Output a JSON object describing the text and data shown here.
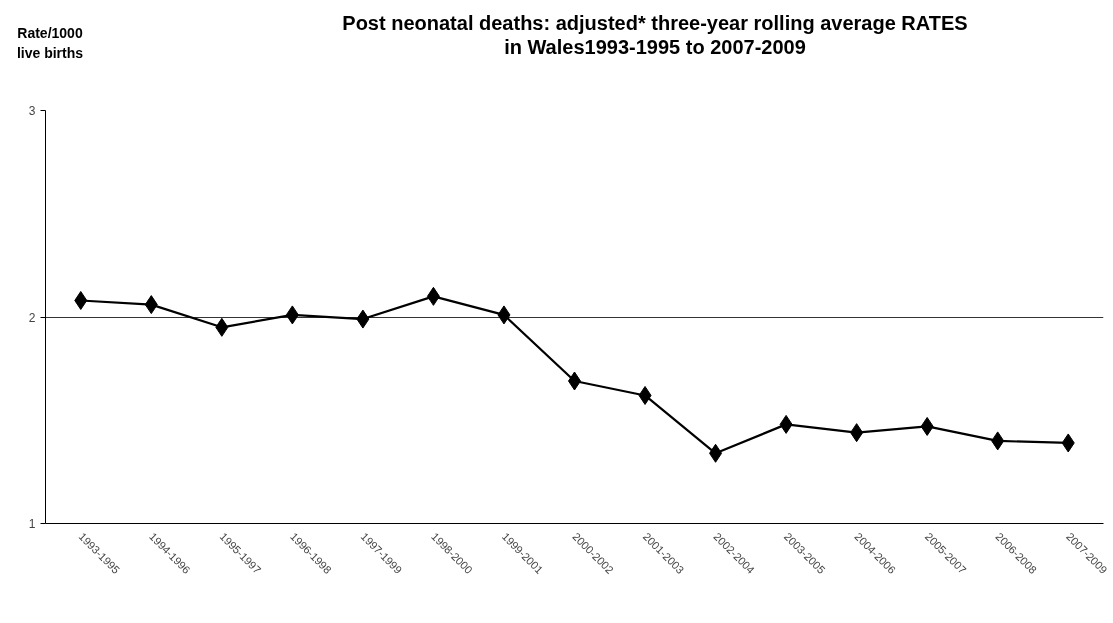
{
  "chart_data": {
    "type": "line",
    "title": "Post neonatal deaths: adjusted* three-year rolling average RATES\nin Wales1993-1995 to 2007-2009",
    "ylabel": "Rate/1000\nlive births",
    "categories": [
      "1993-1995",
      "1994-1996",
      "1995-1997",
      "1996-1998",
      "1997-1999",
      "1998-2000",
      "1999-2001",
      "2000-2002",
      "2001-2003",
      "2002-2004",
      "2003-2005",
      "2004-2006",
      "2005-2007",
      "2006-2008",
      "2007-2009"
    ],
    "series": [
      {
        "color": "#000000",
        "values": [
          2.08,
          2.06,
          1.95,
          2.01,
          1.99,
          2.1,
          2.01,
          1.69,
          1.62,
          1.34,
          1.48,
          1.44,
          1.47,
          1.4,
          1.39
        ]
      }
    ],
    "ylim": [
      1,
      3
    ],
    "yticks": [
      1,
      2,
      3
    ],
    "grid": "y",
    "marker": "diamond",
    "line_style": "solid"
  }
}
